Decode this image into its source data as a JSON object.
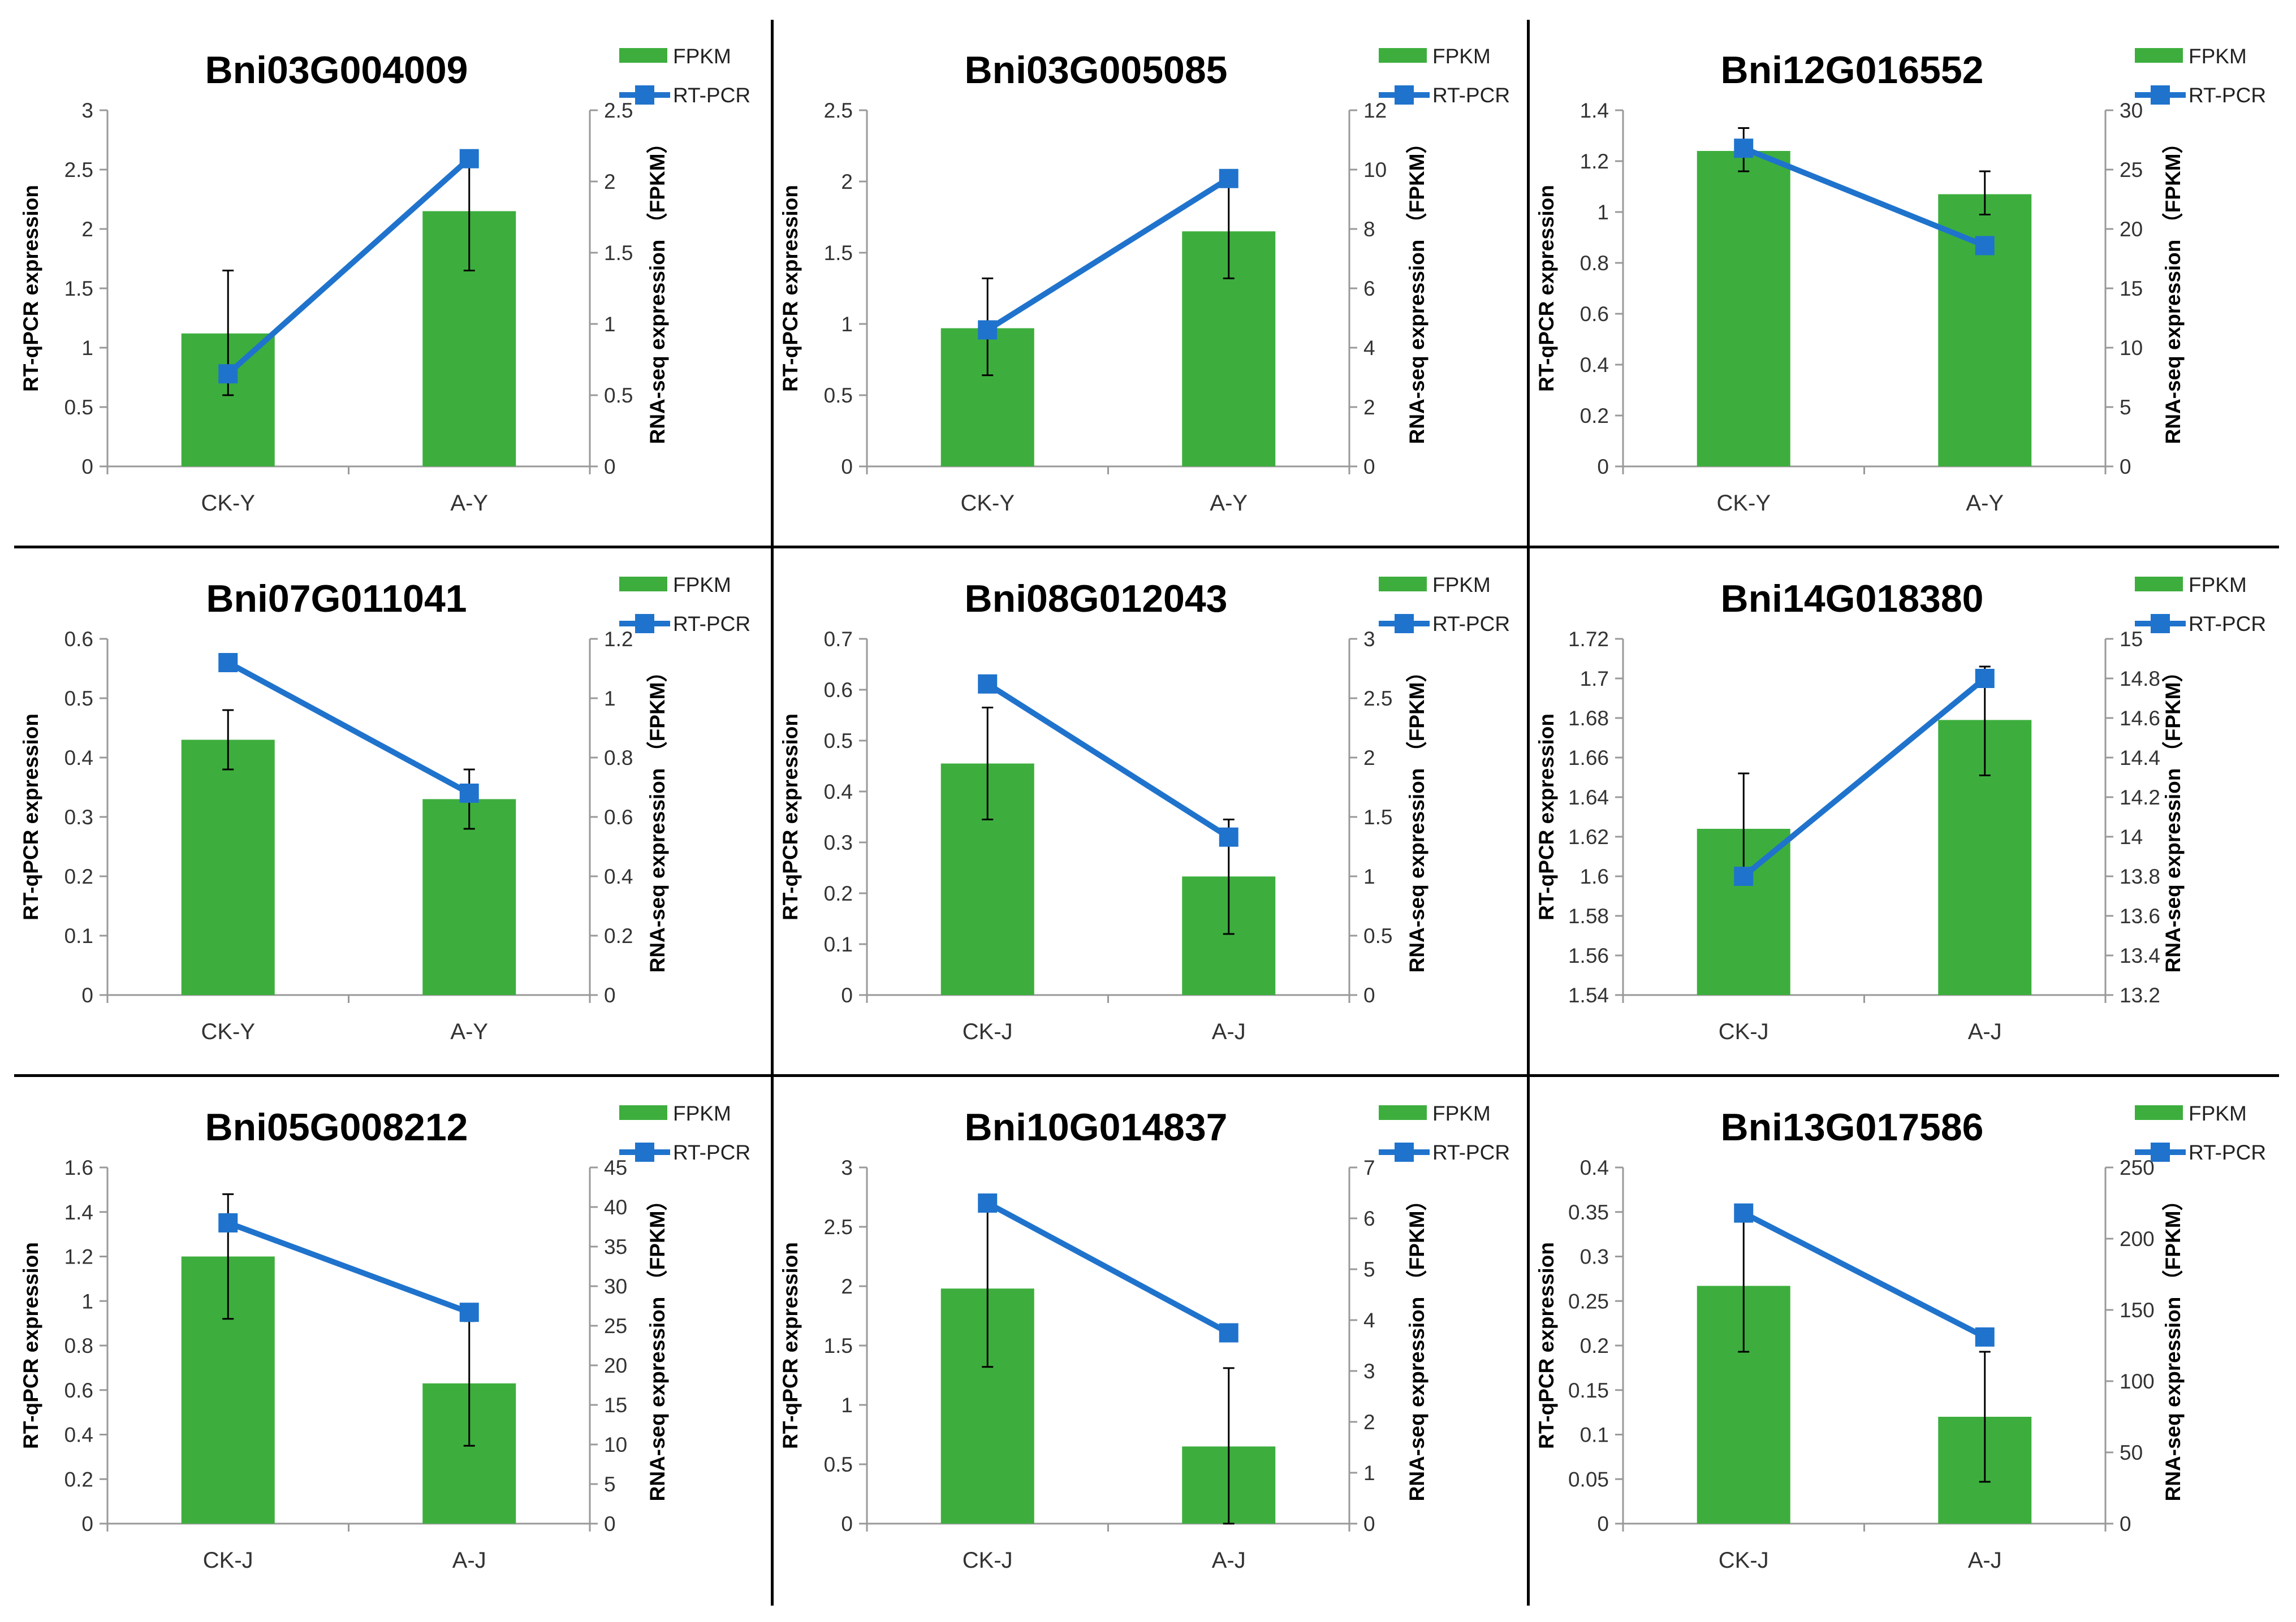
{
  "colors": {
    "bar": "#3DAE3D",
    "line": "#1F73CC",
    "marker": "#1F73CC",
    "axis": "#999999",
    "error": "#000000"
  },
  "legend": {
    "bar_label": "FPKM",
    "line_label": "RT-PCR",
    "position": "top-right"
  },
  "chart_data": [
    {
      "type": "bar",
      "title": "Bni03G004009",
      "categories": [
        "CK-Y",
        "A-Y"
      ],
      "ylabel": "RT-qPCR expression",
      "y2label": "RNA-seq expression （FPKM）",
      "left_ticks": [
        "0",
        "0.5",
        "1",
        "1.5",
        "2",
        "2.5",
        "3"
      ],
      "right_ticks": [
        "0",
        "0.5",
        "1",
        "1.5",
        "2",
        "2.5"
      ],
      "ylim": [
        0,
        3
      ],
      "y2lim": [
        0,
        2.5
      ],
      "series": [
        {
          "name": "FPKM",
          "axis": "left",
          "values": [
            1.12,
            2.15
          ],
          "error": [
            [
              0.6,
              1.65
            ],
            [
              1.65,
              2.6
            ]
          ]
        },
        {
          "name": "RT-PCR",
          "axis": "right",
          "values": [
            0.65,
            2.16
          ]
        }
      ]
    },
    {
      "type": "bar",
      "title": "Bni03G005085",
      "categories": [
        "CK-Y",
        "A-Y"
      ],
      "ylabel": "RT-qPCR expression",
      "y2label": "RNA-seq expression （FPKM）",
      "left_ticks": [
        "0",
        "0.5",
        "1",
        "1.5",
        "2",
        "2.5"
      ],
      "right_ticks": [
        "0",
        "2",
        "4",
        "6",
        "8",
        "10",
        "12"
      ],
      "ylim": [
        0,
        2.5
      ],
      "y2lim": [
        0,
        12
      ],
      "series": [
        {
          "name": "FPKM",
          "axis": "left",
          "values": [
            0.97,
            1.65
          ],
          "error": [
            [
              0.64,
              1.32
            ],
            [
              1.32,
              1.98
            ]
          ]
        },
        {
          "name": "RT-PCR",
          "axis": "right",
          "values": [
            4.6,
            9.7
          ]
        }
      ]
    },
    {
      "type": "bar",
      "title": "Bni12G016552",
      "categories": [
        "CK-Y",
        "A-Y"
      ],
      "ylabel": "RT-qPCR expression",
      "y2label": "RNA-seq expression （FPKM）",
      "left_ticks": [
        "0",
        "0.2",
        "0.4",
        "0.6",
        "0.8",
        "1",
        "1.2",
        "1.4"
      ],
      "right_ticks": [
        "0",
        "5",
        "10",
        "15",
        "20",
        "25",
        "30"
      ],
      "ylim": [
        0,
        1.4
      ],
      "y2lim": [
        0,
        30
      ],
      "series": [
        {
          "name": "FPKM",
          "axis": "left",
          "values": [
            1.24,
            1.07
          ],
          "error": [
            [
              1.16,
              1.33
            ],
            [
              0.99,
              1.16
            ]
          ]
        },
        {
          "name": "RT-PCR",
          "axis": "right",
          "values": [
            26.8,
            18.6
          ]
        }
      ]
    },
    {
      "type": "bar",
      "title": "Bni07G011041",
      "categories": [
        "CK-Y",
        "A-Y"
      ],
      "ylabel": "RT-qPCR expression",
      "y2label": "RNA-seq expression （FPKM）",
      "left_ticks": [
        "0",
        "0.1",
        "0.2",
        "0.3",
        "0.4",
        "0.5",
        "0.6"
      ],
      "right_ticks": [
        "0",
        "0.2",
        "0.4",
        "0.6",
        "0.8",
        "1",
        "1.2"
      ],
      "ylim": [
        0,
        0.6
      ],
      "y2lim": [
        0,
        1.2
      ],
      "series": [
        {
          "name": "FPKM",
          "axis": "left",
          "values": [
            0.43,
            0.33
          ],
          "error": [
            [
              0.38,
              0.48
            ],
            [
              0.28,
              0.38
            ]
          ]
        },
        {
          "name": "RT-PCR",
          "axis": "right",
          "values": [
            1.12,
            0.68
          ]
        }
      ]
    },
    {
      "type": "bar",
      "title": "Bni08G012043",
      "categories": [
        "CK-J",
        "A-J"
      ],
      "ylabel": "RT-qPCR expression",
      "y2label": "RNA-seq expression （FPKM）",
      "left_ticks": [
        "0",
        "0.1",
        "0.2",
        "0.3",
        "0.4",
        "0.5",
        "0.6",
        "0.7"
      ],
      "right_ticks": [
        "0",
        "0.5",
        "1",
        "1.5",
        "2",
        "2.5",
        "3"
      ],
      "ylim": [
        0,
        0.7
      ],
      "y2lim": [
        0,
        3
      ],
      "series": [
        {
          "name": "FPKM",
          "axis": "left",
          "values": [
            0.455,
            0.233
          ],
          "error": [
            [
              0.345,
              0.565
            ],
            [
              0.12,
              0.345
            ]
          ]
        },
        {
          "name": "RT-PCR",
          "axis": "right",
          "values": [
            2.62,
            1.33
          ]
        }
      ]
    },
    {
      "type": "bar",
      "title": "Bni14G018380",
      "categories": [
        "CK-J",
        "A-J"
      ],
      "ylabel": "RT-qPCR expression",
      "y2label": "RNA-seq expression （FPKM）",
      "left_ticks": [
        "1.54",
        "1.56",
        "1.58",
        "1.6",
        "1.62",
        "1.64",
        "1.66",
        "1.68",
        "1.7",
        "1.72"
      ],
      "right_ticks": [
        "13.2",
        "13.4",
        "13.6",
        "13.8",
        "14",
        "14.2",
        "14.4",
        "14.6",
        "14.8",
        "15"
      ],
      "ylim": [
        1.54,
        1.72
      ],
      "y2lim": [
        13.2,
        15
      ],
      "series": [
        {
          "name": "FPKM",
          "axis": "left",
          "values": [
            1.624,
            1.679
          ],
          "error": [
            [
              1.596,
              1.652
            ],
            [
              1.651,
              1.706
            ]
          ]
        },
        {
          "name": "RT-PCR",
          "axis": "right",
          "values": [
            13.8,
            14.8
          ]
        }
      ]
    },
    {
      "type": "bar",
      "title": "Bni05G008212",
      "categories": [
        "CK-J",
        "A-J"
      ],
      "ylabel": "RT-qPCR expression",
      "y2label": "RNA-seq expression （FPKM）",
      "left_ticks": [
        "0",
        "0.2",
        "0.4",
        "0.6",
        "0.8",
        "1",
        "1.2",
        "1.4",
        "1.6"
      ],
      "right_ticks": [
        "0",
        "5",
        "10",
        "15",
        "20",
        "25",
        "30",
        "35",
        "40",
        "45"
      ],
      "ylim": [
        0,
        1.6
      ],
      "y2lim": [
        0,
        45
      ],
      "series": [
        {
          "name": "FPKM",
          "axis": "left",
          "values": [
            1.2,
            0.63
          ],
          "error": [
            [
              0.92,
              1.48
            ],
            [
              0.35,
              0.91
            ]
          ]
        },
        {
          "name": "RT-PCR",
          "axis": "right",
          "values": [
            38,
            26.7
          ]
        }
      ]
    },
    {
      "type": "bar",
      "title": "Bni10G014837",
      "categories": [
        "CK-J",
        "A-J"
      ],
      "ylabel": "RT-qPCR expression",
      "y2label": "RNA-seq expression （FPKM）",
      "left_ticks": [
        "0",
        "0.5",
        "1",
        "1.5",
        "2",
        "2.5",
        "3"
      ],
      "right_ticks": [
        "0",
        "1",
        "2",
        "3",
        "4",
        "5",
        "6",
        "7"
      ],
      "ylim": [
        0,
        3
      ],
      "y2lim": [
        0,
        7
      ],
      "series": [
        {
          "name": "FPKM",
          "axis": "left",
          "values": [
            1.98,
            0.65
          ],
          "error": [
            [
              1.32,
              2.64
            ],
            [
              0,
              1.31
            ]
          ]
        },
        {
          "name": "RT-PCR",
          "axis": "right",
          "values": [
            6.3,
            3.75
          ]
        }
      ]
    },
    {
      "type": "bar",
      "title": "Bni13G017586",
      "categories": [
        "CK-J",
        "A-J"
      ],
      "ylabel": "RT-qPCR expression",
      "y2label": "RNA-seq expression （FPKM）",
      "left_ticks": [
        "0",
        "0.05",
        "0.1",
        "0.15",
        "0.2",
        "0.25",
        "0.3",
        "0.35",
        "0.4"
      ],
      "right_ticks": [
        "0",
        "50",
        "100",
        "150",
        "200",
        "250"
      ],
      "ylim": [
        0,
        0.4
      ],
      "y2lim": [
        0,
        250
      ],
      "series": [
        {
          "name": "FPKM",
          "axis": "left",
          "values": [
            0.267,
            0.12
          ],
          "error": [
            [
              0.193,
              0.341
            ],
            [
              0.047,
              0.193
            ]
          ]
        },
        {
          "name": "RT-PCR",
          "axis": "right",
          "values": [
            218,
            131
          ]
        }
      ]
    }
  ]
}
